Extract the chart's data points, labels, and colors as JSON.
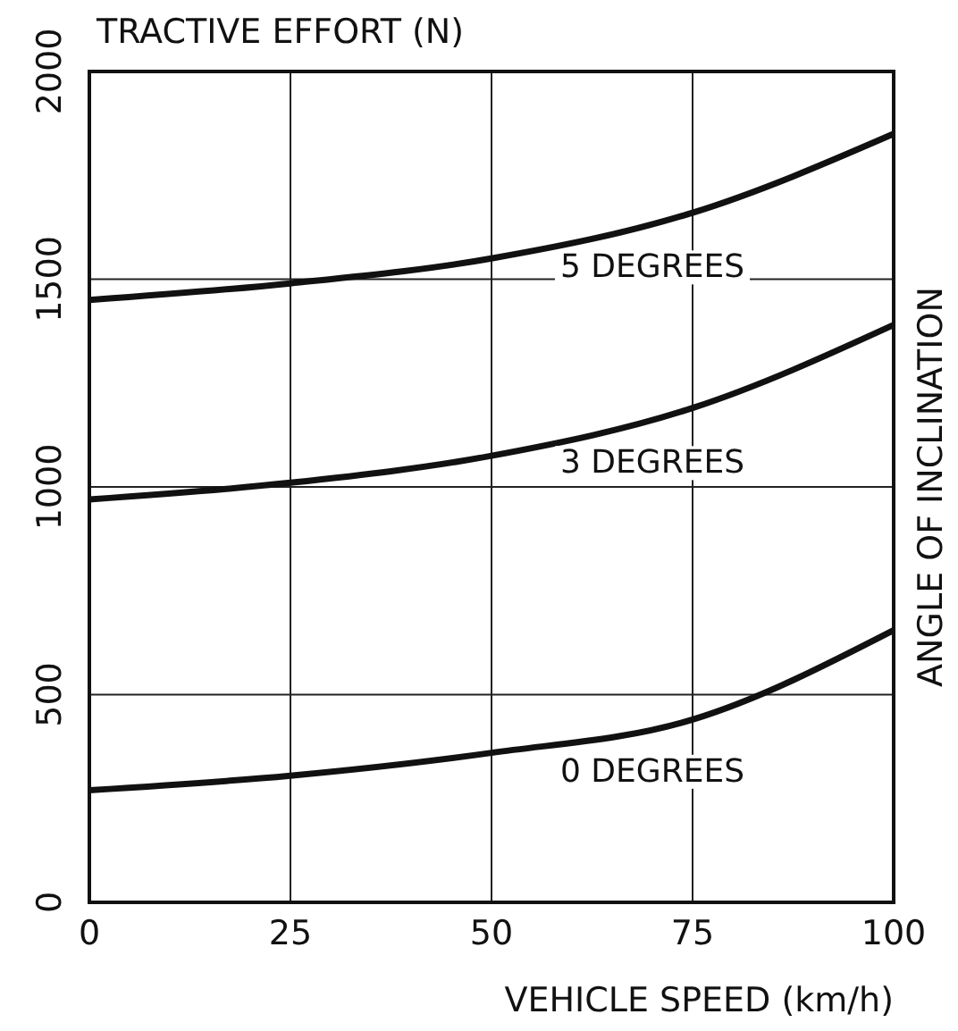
{
  "chart_data": {
    "type": "line",
    "title": "TRACTIVE EFFORT (N)",
    "xlabel": "VEHICLE SPEED (km/h)",
    "y2label": "ANGLE OF INCLINATION",
    "x": [
      0,
      25,
      50,
      75,
      100
    ],
    "series": [
      {
        "name": "5 DEGREES",
        "color": "#111111",
        "values": [
          1450,
          1490,
          1550,
          1660,
          1850
        ]
      },
      {
        "name": "3 DEGREES",
        "color": "#111111",
        "values": [
          970,
          1010,
          1075,
          1190,
          1390
        ]
      },
      {
        "name": "0 DEGREES",
        "color": "#111111",
        "values": [
          270,
          305,
          360,
          440,
          655
        ]
      }
    ],
    "xlim": [
      0,
      100
    ],
    "xticks": [
      0,
      25,
      50,
      75,
      100
    ],
    "ylim": [
      0,
      2000
    ],
    "yticks": [
      0,
      500,
      1000,
      1500,
      2000
    ],
    "grid": true,
    "marker": "none",
    "line_style": "solid"
  }
}
